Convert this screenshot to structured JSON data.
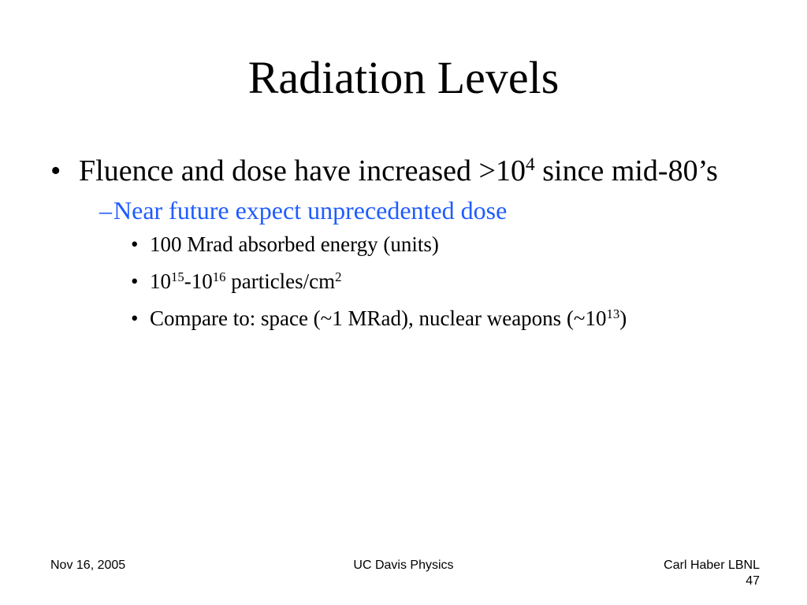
{
  "slide": {
    "title": "Radiation Levels",
    "accent_color": "#1f5cff",
    "bullet_glyph": "•",
    "dash_glyph": "–",
    "points": {
      "main_pre": "Fluence and dose have increased >10",
      "main_sup": "4",
      "main_post": " since mid-80’s",
      "sub": "Near future expect unprecedented dose",
      "detail_1": "100 Mrad absorbed energy (units)",
      "detail_2_a": "10",
      "detail_2_a_sup": "15",
      "detail_2_b": "-10",
      "detail_2_b_sup": "16",
      "detail_2_c": " particles/cm",
      "detail_2_c_sup": "2",
      "detail_3_pre": "Compare to: space (~1 MRad), nuclear weapons (~10",
      "detail_3_sup": "13",
      "detail_3_post": ")"
    }
  },
  "footer": {
    "date": "Nov 16, 2005",
    "venue": "UC Davis Physics",
    "author": "Carl Haber LBNL",
    "page_number": "47"
  }
}
